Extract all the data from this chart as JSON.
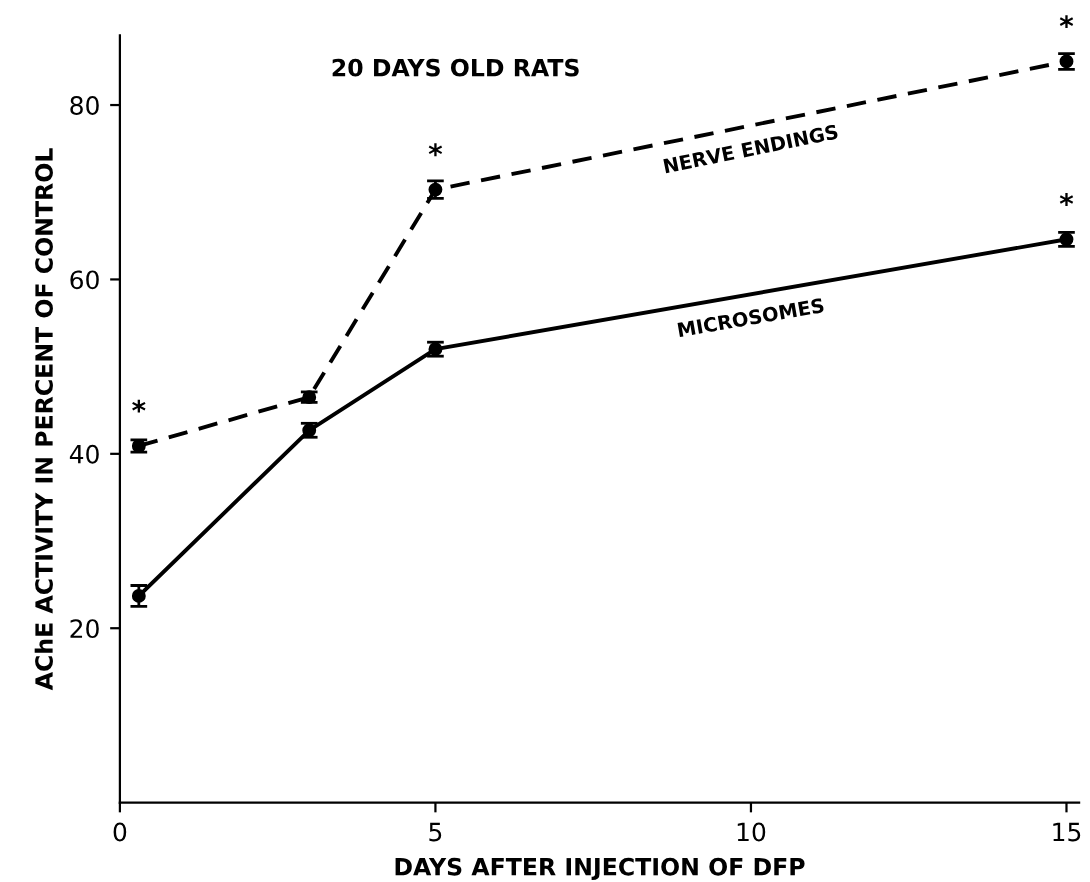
{
  "chart_data": {
    "type": "line",
    "title": "20 DAYS OLD RATS",
    "xlabel": "DAYS AFTER INJECTION OF DFP",
    "ylabel": "AChE ACTIVITY IN PERCENT OF CONTROL",
    "x": [
      0.3,
      3,
      5,
      15
    ],
    "series": [
      {
        "name": "NERVE ENDINGS",
        "color": "#000000",
        "line_style": "dashed",
        "values": [
          40.9,
          46.5,
          70.3,
          85.0
        ],
        "errors": [
          0.7,
          0.6,
          1.0,
          0.9
        ]
      },
      {
        "name": "MICROSOMES",
        "color": "#000000",
        "line_style": "solid",
        "values": [
          23.7,
          42.7,
          52.0,
          64.6
        ],
        "errors": [
          1.2,
          0.8,
          0.8,
          0.8
        ]
      }
    ],
    "annotations": [
      {
        "text": "*",
        "x": 0.3,
        "y": 40.9
      },
      {
        "text": "*",
        "x": 5,
        "y": 70.3
      },
      {
        "text": "*",
        "x": 15,
        "y": 85.0
      },
      {
        "text": "*",
        "x": 15,
        "y": 64.6
      }
    ],
    "xlim": [
      0,
      15.2
    ],
    "ylim": [
      0,
      88
    ],
    "xticks": [
      0,
      5,
      10,
      15
    ],
    "yticks": [
      20,
      40,
      60,
      80
    ],
    "grid": false,
    "legend": false,
    "marker": "circle"
  }
}
